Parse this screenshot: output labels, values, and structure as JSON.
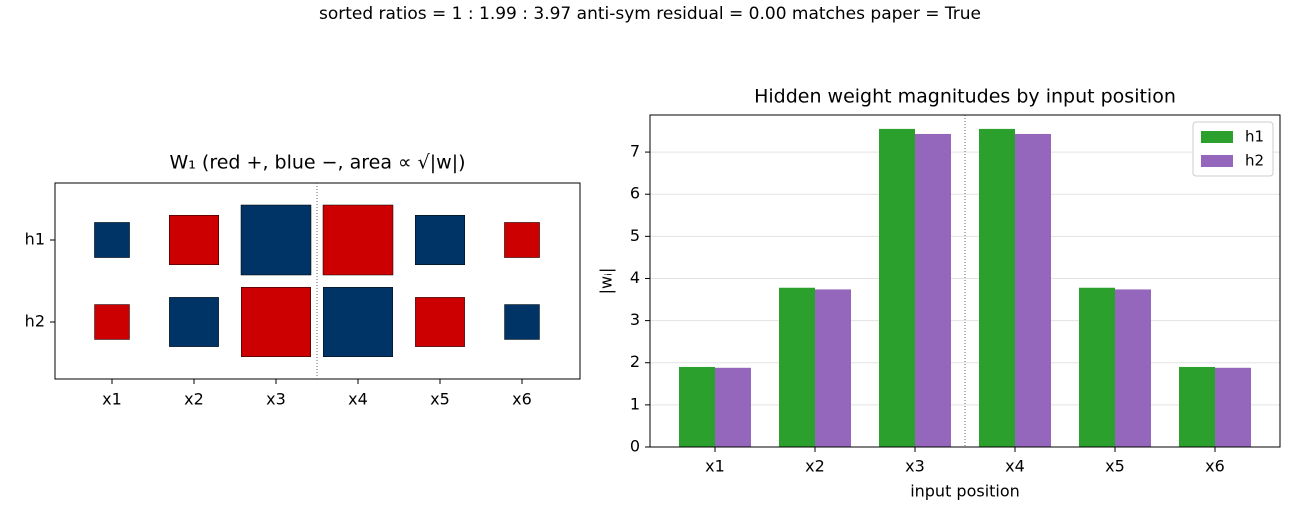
{
  "title": "sorted ratios = 1 : 1.99 : 3.97    anti-sym residual = 0.00    matches paper = True",
  "chart_data": [
    {
      "type": "hinton",
      "title": "W₁ (red +, blue −, area ∝ √|w|)",
      "columns": [
        "x1",
        "x2",
        "x3",
        "x4",
        "x5",
        "x6"
      ],
      "rows": [
        "h1",
        "h2"
      ],
      "values": [
        [
          -1.9,
          3.78,
          -7.55,
          7.55,
          -3.78,
          1.9
        ],
        [
          1.88,
          -3.74,
          7.43,
          -7.43,
          3.74,
          -1.88
        ]
      ],
      "positive_color": "#cc0000",
      "negative_color": "#003366"
    },
    {
      "type": "bar",
      "title": "Hidden weight magnitudes by input position",
      "xlabel": "input position",
      "ylabel": "|wᵢ|",
      "categories": [
        "x1",
        "x2",
        "x3",
        "x4",
        "x5",
        "x6"
      ],
      "series": [
        {
          "name": "h1",
          "color": "#2ca02c",
          "values": [
            1.9,
            3.78,
            7.55,
            7.55,
            3.78,
            1.9
          ]
        },
        {
          "name": "h2",
          "color": "#9467bd",
          "values": [
            1.88,
            3.74,
            7.43,
            7.43,
            3.74,
            1.88
          ]
        }
      ],
      "ylim": [
        0,
        7.88
      ],
      "yticks": [
        0,
        1,
        2,
        3,
        4,
        5,
        6,
        7
      ],
      "grid": true,
      "legend": "upper right"
    }
  ]
}
